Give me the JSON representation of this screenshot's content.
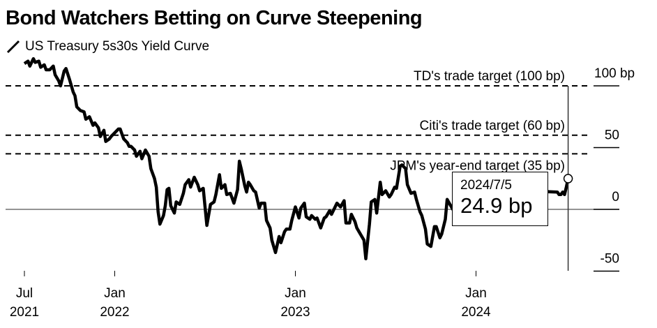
{
  "title": "Bond Watchers Betting on Curve Steepening",
  "legend": {
    "label": "US Treasury 5s30s Yield Curve",
    "icon": "line-swatch-icon"
  },
  "tooltip": {
    "date": "2024/7/5",
    "value": "24.9 bp"
  },
  "chart_data": {
    "type": "line",
    "title": "Bond Watchers Betting on Curve Steepening",
    "xlabel": "",
    "ylabel": "",
    "ylim": [
      -50,
      100
    ],
    "xlim": [
      "2021-07-01",
      "2024-07-05"
    ],
    "yticks": [
      {
        "value": 100,
        "label": "100 bp"
      },
      {
        "value": 50,
        "label": "50"
      },
      {
        "value": 0,
        "label": "0"
      },
      {
        "value": -50,
        "label": "-50"
      }
    ],
    "xticks": [
      {
        "t": 2021.5,
        "line1": "Jul",
        "line2": "2021"
      },
      {
        "t": 2022.0,
        "line1": "Jan",
        "line2": "2022"
      },
      {
        "t": 2023.0,
        "line1": "Jan",
        "line2": "2023"
      },
      {
        "t": 2024.0,
        "line1": "Jan",
        "line2": "2024"
      }
    ],
    "annotations": [
      {
        "label": "TD's trade target (100 bp)",
        "value": 100
      },
      {
        "label": "Citi's trade target (60 bp)",
        "value": 60
      },
      {
        "label": "JPM's year-end target (35 bp)",
        "value": 35
      }
    ],
    "highlight": {
      "t": 2024.51,
      "value": 24.9,
      "date": "2024/7/5"
    },
    "grid": false,
    "series": [
      {
        "name": "US Treasury 5s30s Yield Curve",
        "points": [
          [
            2021.5,
            118
          ],
          [
            2021.52,
            120
          ],
          [
            2021.53,
            116
          ],
          [
            2021.55,
            122
          ],
          [
            2021.56,
            119
          ],
          [
            2021.58,
            120
          ],
          [
            2021.59,
            115
          ],
          [
            2021.61,
            117
          ],
          [
            2021.62,
            113
          ],
          [
            2021.64,
            113
          ],
          [
            2021.66,
            116
          ],
          [
            2021.67,
            109
          ],
          [
            2021.69,
            104
          ],
          [
            2021.7,
            100
          ],
          [
            2021.72,
            112
          ],
          [
            2021.73,
            114
          ],
          [
            2021.75,
            105
          ],
          [
            2021.77,
            95
          ],
          [
            2021.78,
            92
          ],
          [
            2021.79,
            83
          ],
          [
            2021.81,
            80
          ],
          [
            2021.83,
            79
          ],
          [
            2021.84,
            73
          ],
          [
            2021.86,
            75
          ],
          [
            2021.88,
            68
          ],
          [
            2021.89,
            70
          ],
          [
            2021.91,
            66
          ],
          [
            2021.92,
            59
          ],
          [
            2021.94,
            64
          ],
          [
            2021.95,
            55
          ],
          [
            2021.97,
            57
          ],
          [
            2021.98,
            59
          ],
          [
            2022.0,
            62
          ],
          [
            2022.02,
            65
          ],
          [
            2022.03,
            65
          ],
          [
            2022.05,
            57
          ],
          [
            2022.07,
            54
          ],
          [
            2022.08,
            51
          ],
          [
            2022.09,
            51
          ],
          [
            2022.11,
            48
          ],
          [
            2022.12,
            43
          ],
          [
            2022.14,
            47
          ],
          [
            2022.15,
            41
          ],
          [
            2022.17,
            48
          ],
          [
            2022.19,
            43
          ],
          [
            2022.2,
            33
          ],
          [
            2022.22,
            25
          ],
          [
            2022.23,
            18
          ],
          [
            2022.24,
            -2
          ],
          [
            2022.25,
            -12
          ],
          [
            2022.27,
            -5
          ],
          [
            2022.28,
            3
          ],
          [
            2022.29,
            16
          ],
          [
            2022.3,
            17
          ],
          [
            2022.31,
            3
          ],
          [
            2022.33,
            -3
          ],
          [
            2022.34,
            6
          ],
          [
            2022.36,
            4
          ],
          [
            2022.38,
            13
          ],
          [
            2022.39,
            20
          ],
          [
            2022.41,
            24
          ],
          [
            2022.42,
            18
          ],
          [
            2022.44,
            26
          ],
          [
            2022.46,
            20
          ],
          [
            2022.47,
            15
          ],
          [
            2022.49,
            17
          ],
          [
            2022.5,
            2
          ],
          [
            2022.51,
            -13
          ],
          [
            2022.53,
            4
          ],
          [
            2022.55,
            6
          ],
          [
            2022.56,
            12
          ],
          [
            2022.58,
            28
          ],
          [
            2022.59,
            17
          ],
          [
            2022.61,
            20
          ],
          [
            2022.62,
            12
          ],
          [
            2022.64,
            13
          ],
          [
            2022.66,
            5
          ],
          [
            2022.68,
            16
          ],
          [
            2022.69,
            39
          ],
          [
            2022.7,
            33
          ],
          [
            2022.72,
            19
          ],
          [
            2022.73,
            14
          ],
          [
            2022.74,
            22
          ],
          [
            2022.75,
            20
          ],
          [
            2022.77,
            15
          ],
          [
            2022.78,
            14
          ],
          [
            2022.8,
            1
          ],
          [
            2022.81,
            5
          ],
          [
            2022.83,
            5
          ],
          [
            2022.84,
            -9
          ],
          [
            2022.86,
            -15
          ],
          [
            2022.87,
            -25
          ],
          [
            2022.89,
            -35
          ],
          [
            2022.91,
            -22
          ],
          [
            2022.92,
            -27
          ],
          [
            2022.94,
            -18
          ],
          [
            2022.95,
            -16
          ],
          [
            2022.97,
            -16
          ],
          [
            2022.98,
            -9
          ],
          [
            2023.0,
            2
          ],
          [
            2023.02,
            -7
          ],
          [
            2023.03,
            1
          ],
          [
            2023.05,
            5
          ],
          [
            2023.06,
            -6
          ],
          [
            2023.08,
            -8
          ],
          [
            2023.09,
            -5
          ],
          [
            2023.11,
            -8
          ],
          [
            2023.12,
            -7
          ],
          [
            2023.14,
            -15
          ],
          [
            2023.16,
            -7
          ],
          [
            2023.17,
            -6
          ],
          [
            2023.19,
            -1
          ],
          [
            2023.2,
            -4
          ],
          [
            2023.22,
            2
          ],
          [
            2023.23,
            5
          ],
          [
            2023.25,
            2
          ],
          [
            2023.27,
            7
          ],
          [
            2023.28,
            -11
          ],
          [
            2023.3,
            -11
          ],
          [
            2023.31,
            -4
          ],
          [
            2023.33,
            -10
          ],
          [
            2023.34,
            -15
          ],
          [
            2023.36,
            -20
          ],
          [
            2023.38,
            -25
          ],
          [
            2023.39,
            -40
          ],
          [
            2023.41,
            -12
          ],
          [
            2023.42,
            6
          ],
          [
            2023.44,
            8
          ],
          [
            2023.45,
            -3
          ],
          [
            2023.47,
            22
          ],
          [
            2023.48,
            12
          ],
          [
            2023.5,
            15
          ],
          [
            2023.52,
            10
          ],
          [
            2023.53,
            12
          ],
          [
            2023.55,
            18
          ],
          [
            2023.56,
            17
          ],
          [
            2023.58,
            35
          ],
          [
            2023.59,
            36
          ],
          [
            2023.61,
            33
          ],
          [
            2023.62,
            20
          ],
          [
            2023.64,
            13
          ],
          [
            2023.66,
            14
          ],
          [
            2023.67,
            8
          ],
          [
            2023.69,
            -2
          ],
          [
            2023.7,
            -5
          ],
          [
            2023.72,
            -16
          ],
          [
            2023.73,
            -28
          ],
          [
            2023.75,
            -30
          ],
          [
            2023.77,
            -14
          ],
          [
            2023.78,
            -14
          ],
          [
            2023.8,
            -23
          ],
          [
            2023.81,
            -20
          ],
          [
            2023.83,
            -8
          ],
          [
            2023.84,
            8
          ],
          [
            2023.86,
            3
          ],
          [
            2023.88,
            -2
          ],
          [
            2023.89,
            -3
          ],
          [
            2023.91,
            2
          ],
          [
            2023.92,
            -2
          ],
          [
            2023.94,
            -3
          ],
          [
            2023.95,
            -7
          ],
          [
            2023.97,
            6
          ],
          [
            2023.98,
            11
          ],
          [
            2024.0,
            12
          ],
          [
            2024.02,
            19
          ],
          [
            2024.03,
            17
          ],
          [
            2024.05,
            13
          ],
          [
            2024.06,
            22
          ],
          [
            2024.08,
            23
          ],
          [
            2024.09,
            20
          ],
          [
            2024.11,
            15
          ],
          [
            2024.12,
            13
          ],
          [
            2024.14,
            8
          ],
          [
            2024.16,
            10
          ],
          [
            2024.17,
            15
          ],
          [
            2024.19,
            12
          ],
          [
            2024.2,
            14
          ],
          [
            2024.22,
            18
          ],
          [
            2024.23,
            19
          ],
          [
            2024.25,
            11
          ],
          [
            2024.27,
            6
          ],
          [
            2024.28,
            15
          ],
          [
            2024.45,
            14
          ],
          [
            2024.46,
            12
          ],
          [
            2024.47,
            12
          ],
          [
            2024.48,
            14
          ],
          [
            2024.49,
            12
          ],
          [
            2024.5,
            18
          ],
          [
            2024.51,
            24.9
          ]
        ]
      }
    ]
  }
}
